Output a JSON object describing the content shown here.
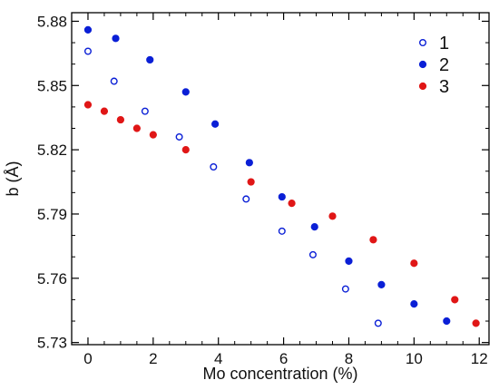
{
  "chart_data": {
    "type": "scatter",
    "title": "",
    "xlabel": "Mo concentration (%)",
    "ylabel": "b (Å)",
    "xlim": [
      -0.5,
      12.3
    ],
    "ylim": [
      5.729,
      5.884
    ],
    "xticks": [
      0,
      2,
      4,
      6,
      8,
      10,
      12
    ],
    "yticks": [
      5.73,
      5.76,
      5.79,
      5.82,
      5.85,
      5.88
    ],
    "xtick_labels": [
      "0",
      "2",
      "4",
      "6",
      "8",
      "10",
      "12"
    ],
    "ytick_labels": [
      "5.73",
      "5.76",
      "5.79",
      "5.82",
      "5.85",
      "5.88"
    ],
    "grid": false,
    "legend_position": "top-right",
    "series": [
      {
        "name": "1",
        "marker": "open-circle",
        "color": "#0a1fd6",
        "points": [
          [
            0.0,
            5.866
          ],
          [
            0.8,
            5.852
          ],
          [
            1.75,
            5.838
          ],
          [
            2.8,
            5.826
          ],
          [
            3.85,
            5.812
          ],
          [
            4.85,
            5.797
          ],
          [
            5.95,
            5.782
          ],
          [
            6.9,
            5.771
          ],
          [
            7.9,
            5.755
          ],
          [
            8.9,
            5.739
          ]
        ]
      },
      {
        "name": "2",
        "marker": "filled-circle",
        "color": "#0a1fd6",
        "points": [
          [
            0.0,
            5.876
          ],
          [
            0.85,
            5.872
          ],
          [
            1.9,
            5.862
          ],
          [
            3.0,
            5.847
          ],
          [
            3.9,
            5.832
          ],
          [
            4.95,
            5.814
          ],
          [
            5.95,
            5.798
          ],
          [
            6.95,
            5.784
          ],
          [
            8.0,
            5.768
          ],
          [
            9.0,
            5.757
          ],
          [
            10.0,
            5.748
          ],
          [
            11.0,
            5.74
          ]
        ]
      },
      {
        "name": "3",
        "marker": "filled-circle",
        "color": "#e01616",
        "points": [
          [
            0.0,
            5.841
          ],
          [
            0.5,
            5.838
          ],
          [
            1.0,
            5.834
          ],
          [
            1.5,
            5.83
          ],
          [
            2.0,
            5.827
          ],
          [
            3.0,
            5.82
          ],
          [
            5.0,
            5.805
          ],
          [
            6.25,
            5.795
          ],
          [
            7.5,
            5.789
          ],
          [
            8.75,
            5.778
          ],
          [
            10.0,
            5.767
          ],
          [
            11.25,
            5.75
          ],
          [
            11.9,
            5.739
          ]
        ]
      }
    ]
  }
}
